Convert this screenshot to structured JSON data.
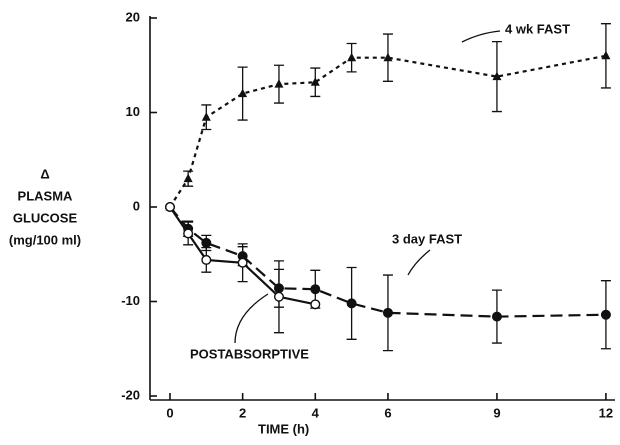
{
  "chart_data": {
    "type": "line",
    "ylabel": [
      "Δ",
      "PLASMA",
      "GLUCOSE",
      "(mg/100 ml)"
    ],
    "xlabel": "TIME (h)",
    "annotations": [
      "4 wk FAST",
      "3 day FAST",
      "POSTABSORPTIVE"
    ],
    "x": [
      0,
      0.5,
      1,
      2,
      3,
      4,
      5,
      6,
      9,
      12
    ],
    "series": [
      {
        "name": "4 wk FAST",
        "color": "#111111",
        "marker": "triangle",
        "dash": "4,4",
        "values": [
          0,
          3,
          9.5,
          12,
          13,
          13.2,
          15.8,
          15.8,
          13.8,
          16
        ],
        "errors": [
          0,
          0.8,
          1.3,
          2.8,
          2,
          1.5,
          1.5,
          2.5,
          3.7,
          3.4
        ]
      },
      {
        "name": "3 day FAST",
        "color": "#111111",
        "marker": "circle",
        "dash": "12,6",
        "values": [
          0,
          -2.3,
          -3.8,
          -5.2,
          -8.6,
          -8.7,
          -10.2,
          -11.2,
          -11.6,
          -11.4
        ],
        "errors": [
          0,
          0.8,
          0.8,
          1,
          2,
          2,
          3.8,
          4,
          2.8,
          3.6
        ]
      },
      {
        "name": "POSTABSORPTIVE",
        "color": "#111111",
        "marker": "open-circle",
        "dash": "none",
        "values": [
          0,
          -2.8,
          -5.6,
          -5.9,
          -9.5,
          -10.3,
          null,
          null,
          null,
          null
        ],
        "errors": [
          0,
          1.2,
          1.3,
          2,
          3.8,
          0,
          null,
          null,
          null,
          null
        ]
      }
    ],
    "xlim": [
      -0.55,
      12.25
    ],
    "ylim": [
      -20,
      20
    ],
    "xticks": [
      0,
      2,
      4,
      6,
      9,
      12
    ],
    "yticks": [
      -20,
      -10,
      0,
      10,
      20
    ]
  }
}
